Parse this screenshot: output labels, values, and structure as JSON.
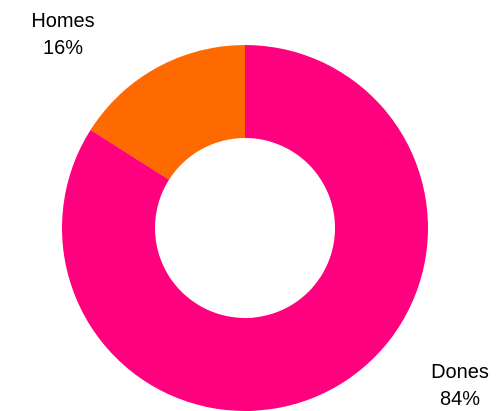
{
  "chart_data": {
    "type": "pie",
    "donut": true,
    "slices": [
      {
        "label": "Dones",
        "value": 84,
        "percent_label": "84%",
        "color": "#FF007F"
      },
      {
        "label": "Homes",
        "value": 16,
        "percent_label": "16%",
        "color": "#FF6A00"
      }
    ],
    "title": "",
    "legend": "none"
  }
}
